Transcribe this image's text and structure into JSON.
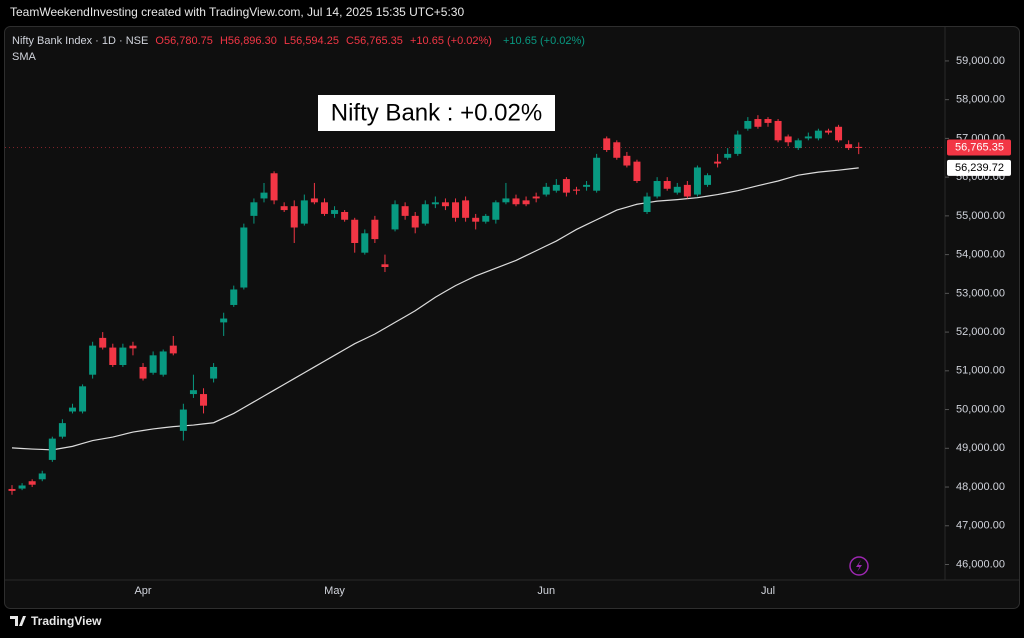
{
  "header": "TeamWeekendInvesting created with TradingView.com, Jul 14, 2025 15:35 UTC+5:30",
  "brand": "TradingView",
  "chart_data": {
    "type": "candlestick",
    "symbol": "Nifty Bank Index · 1D · NSE",
    "legend_open": "O56,780.75",
    "legend_high": "H56,896.30",
    "legend_low": "L56,594.25",
    "legend_close": "C56,765.35",
    "legend_change": "+10.65 (+0.02%)",
    "legend_change_2": "+10.65 (+0.02%)",
    "indicator": "SMA",
    "annotation": "Nifty Bank : +0.02%",
    "up_color": "#089981",
    "down_color": "#f23645",
    "categories": [
      null,
      null,
      null,
      null,
      null,
      null,
      null,
      null,
      null,
      null,
      null,
      null,
      null,
      "Apr",
      null,
      null,
      null,
      null,
      null,
      null,
      null,
      null,
      null,
      null,
      null,
      null,
      null,
      null,
      null,
      null,
      null,
      null,
      "May",
      null,
      null,
      null,
      null,
      null,
      null,
      null,
      null,
      null,
      null,
      null,
      null,
      null,
      null,
      null,
      null,
      null,
      null,
      null,
      null,
      "Jun",
      null,
      null,
      null,
      null,
      null,
      null,
      null,
      null,
      null,
      null,
      null,
      null,
      null,
      null,
      null,
      null,
      null,
      null,
      null,
      null,
      null,
      "Jul",
      null,
      null,
      null,
      null,
      null,
      null,
      null,
      null,
      null
    ],
    "open": [
      47950,
      47960,
      48150,
      48200,
      48700,
      49300,
      49950,
      49950,
      50900,
      51850,
      51600,
      51150,
      51650,
      51100,
      50950,
      50900,
      51650,
      49450,
      50400,
      50400,
      50800,
      52250,
      52700,
      53150,
      55000,
      55450,
      56100,
      55250,
      55250,
      54800,
      55450,
      55350,
      55050,
      55100,
      54900,
      54050,
      54900,
      53750,
      54650,
      55250,
      55000,
      54800,
      55300,
      55350,
      55350,
      55400,
      54950,
      54850,
      54900,
      55350,
      55450,
      55400,
      55500,
      55550,
      55650,
      55950,
      55680,
      55750,
      55650,
      57000,
      56900,
      56550,
      56400,
      55100,
      55500,
      55900,
      55600,
      55800,
      55550,
      55800,
      56400,
      56500,
      56600,
      57250,
      57500,
      57500,
      57450,
      57050,
      56750,
      57000,
      57000,
      57200,
      57300,
      56850,
      56780.75
    ],
    "high": [
      48050,
      48100,
      48200,
      48420,
      49300,
      49750,
      50150,
      50650,
      51750,
      52000,
      51700,
      51700,
      51750,
      51200,
      51500,
      51550,
      51900,
      50150,
      50900,
      50550,
      51200,
      52500,
      53200,
      54800,
      55450,
      55850,
      56150,
      55350,
      55400,
      55550,
      55850,
      55450,
      55250,
      55150,
      54950,
      54650,
      55000,
      54000,
      55400,
      55350,
      55100,
      55400,
      55500,
      55450,
      55450,
      55500,
      55050,
      55050,
      55400,
      55850,
      55550,
      55500,
      55600,
      55850,
      55950,
      56000,
      55750,
      55900,
      56600,
      57050,
      56950,
      56650,
      56450,
      55600,
      56000,
      56000,
      55850,
      55900,
      56300,
      56100,
      56600,
      56750,
      57200,
      57550,
      57600,
      57550,
      57500,
      57100,
      57000,
      57150,
      57250,
      57250,
      57350,
      56950,
      56896.3
    ],
    "low": [
      47800,
      47920,
      48000,
      48150,
      48650,
      49250,
      49900,
      49900,
      50800,
      51550,
      51100,
      51100,
      51400,
      50750,
      50900,
      50850,
      51400,
      49200,
      50300,
      49900,
      50700,
      51900,
      52650,
      53100,
      54800,
      55350,
      55300,
      55100,
      54300,
      54750,
      55300,
      55000,
      54950,
      54850,
      54050,
      54000,
      54300,
      53550,
      54600,
      54900,
      54550,
      54750,
      55200,
      55150,
      54850,
      54850,
      54650,
      54800,
      54800,
      55300,
      55250,
      55250,
      55350,
      55500,
      55600,
      55500,
      55550,
      55650,
      55600,
      56650,
      56450,
      56250,
      55850,
      55050,
      55450,
      55650,
      55550,
      55450,
      55500,
      55750,
      56250,
      56450,
      56550,
      57200,
      57250,
      57300,
      56900,
      56800,
      56700,
      56950,
      56950,
      57100,
      56900,
      56700,
      56594.25
    ],
    "close": [
      47900,
      48040,
      48060,
      48350,
      49250,
      49650,
      50050,
      50600,
      51650,
      51600,
      51150,
      51600,
      51580,
      50800,
      51400,
      51500,
      51450,
      50000,
      50500,
      50100,
      51100,
      52350,
      53100,
      54700,
      55350,
      55600,
      55400,
      55150,
      54700,
      55400,
      55350,
      55050,
      55150,
      54900,
      54300,
      54550,
      54400,
      53680,
      55300,
      55000,
      54700,
      55300,
      55350,
      55250,
      54950,
      54950,
      54850,
      55000,
      55350,
      55450,
      55300,
      55300,
      55450,
      55750,
      55800,
      55600,
      55650,
      55800,
      56500,
      56700,
      56500,
      56300,
      55900,
      55500,
      55900,
      55700,
      55750,
      55500,
      56250,
      56050,
      56350,
      56600,
      57100,
      57450,
      57300,
      57400,
      56950,
      56900,
      56950,
      57050,
      57200,
      57150,
      56950,
      56750,
      56765.35
    ],
    "sma": {
      "name": "SMA",
      "color": "#dcdcdc",
      "values": [
        49010,
        48995,
        48980,
        48970,
        48960,
        49005,
        49050,
        49125,
        49200,
        49245,
        49290,
        49355,
        49420,
        49460,
        49500,
        49530,
        49560,
        49580,
        49600,
        49630,
        49660,
        49780,
        49900,
        50050,
        50200,
        50350,
        50500,
        50650,
        50800,
        50950,
        51100,
        51250,
        51400,
        51550,
        51700,
        51825,
        51950,
        52100,
        52250,
        52400,
        52550,
        52725,
        52900,
        53050,
        53200,
        53325,
        53450,
        53550,
        53650,
        53750,
        53850,
        53975,
        54100,
        54225,
        54350,
        54500,
        54650,
        54775,
        54900,
        55025,
        55150,
        55225,
        55300,
        55340,
        55380,
        55400,
        55420,
        55445,
        55470,
        55510,
        55550,
        55600,
        55650,
        55715,
        55780,
        55840,
        55900,
        55975,
        56050,
        56090,
        56130,
        56155,
        56180,
        56210,
        56239.72
      ]
    },
    "last_price_label": {
      "value": 56765.35,
      "label": "56,765.35"
    },
    "sma_price_label": {
      "value": 56239.72,
      "label": "56,239.72"
    },
    "ylim": [
      45600,
      59850
    ],
    "yticks": [
      {
        "value": 46000,
        "label": "46,000.00"
      },
      {
        "value": 47000,
        "label": "47,000.00"
      },
      {
        "value": 48000,
        "label": "48,000.00"
      },
      {
        "value": 49000,
        "label": "49,000.00"
      },
      {
        "value": 50000,
        "label": "50,000.00"
      },
      {
        "value": 51000,
        "label": "51,000.00"
      },
      {
        "value": 52000,
        "label": "52,000.00"
      },
      {
        "value": 53000,
        "label": "53,000.00"
      },
      {
        "value": 54000,
        "label": "54,000.00"
      },
      {
        "value": 55000,
        "label": "55,000.00"
      },
      {
        "value": 56000,
        "label": "56,000.00"
      },
      {
        "value": 57000,
        "label": "57,000.00"
      },
      {
        "value": 58000,
        "label": "58,000.00"
      },
      {
        "value": 59000,
        "label": "59,000.00"
      }
    ],
    "grid": false
  }
}
